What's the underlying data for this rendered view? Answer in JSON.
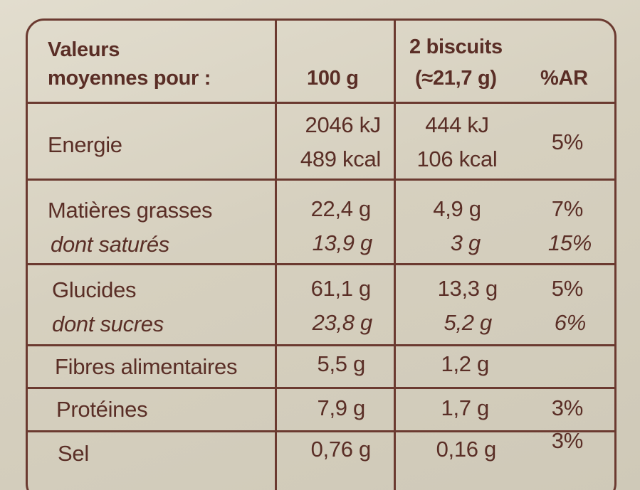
{
  "header": {
    "label_line1": "Valeurs",
    "label_line2": "moyennes pour :",
    "col_100g": "100 g",
    "col_portion_line1": "2 biscuits",
    "col_portion_line2": "(≈21,7 g)",
    "col_ar": "%AR"
  },
  "rows": [
    {
      "label": "Energie",
      "v100": "2046 kJ",
      "v100b": "489 kcal",
      "portion": "444 kJ",
      "portionb": "106 kcal",
      "ar": "5%"
    },
    {
      "label": "Matières grasses",
      "v100": "22,4 g",
      "portion": "4,9 g",
      "ar": "7%"
    },
    {
      "label": "dont saturés",
      "v100": "13,9 g",
      "portion": "3 g",
      "ar": "15%"
    },
    {
      "label": "Glucides",
      "v100": "61,1 g",
      "portion": "13,3 g",
      "ar": "5%"
    },
    {
      "label": "dont sucres",
      "v100": "23,8 g",
      "portion": "5,2 g",
      "ar": "6%"
    },
    {
      "label": "Fibres alimentaires",
      "v100": "5,5 g",
      "portion": "1,2 g",
      "ar": ""
    },
    {
      "label": "Protéines",
      "v100": "7,9 g",
      "portion": "1,7 g",
      "ar": "3%"
    },
    {
      "label": "Sel",
      "v100": "0,76 g",
      "portion": "0,16 g",
      "ar": "3%"
    }
  ],
  "colors": {
    "ink": "#5a2e26",
    "border": "#6b3a30",
    "background": "#d8d2c2"
  }
}
